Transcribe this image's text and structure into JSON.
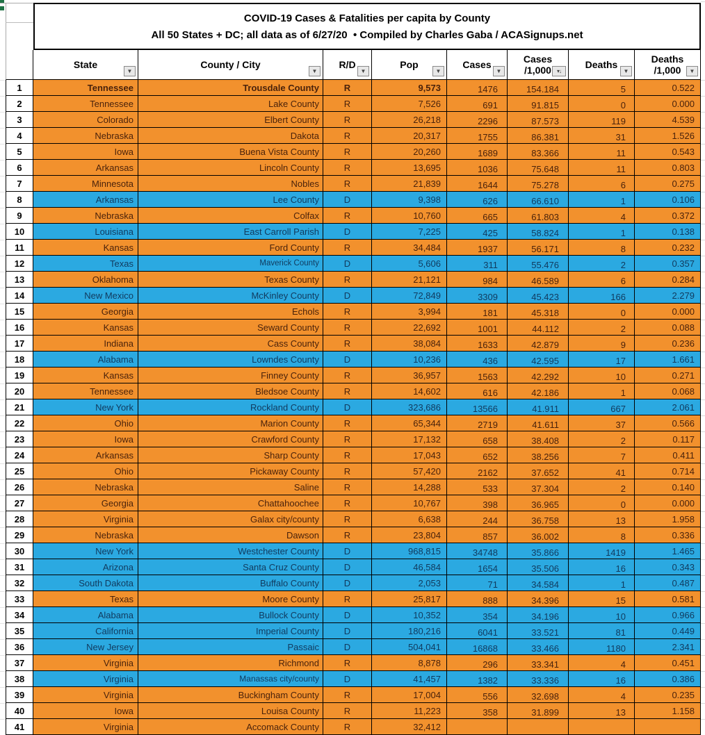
{
  "title": "COVID-19 Cases & Fatalities per capita by County",
  "subtitle": "All 50 States + DC; all data as of 6/27/20  • Compiled by Charles Gaba / ACASignups.net",
  "columns": {
    "state": "State",
    "county": "County / City",
    "rd": "R/D",
    "pop": "Pop",
    "cases": "Cases",
    "cases_per_1000_line1": "Cases",
    "cases_per_1000_line2": "/1,000",
    "deaths": "Deaths",
    "deaths_per_1000_line1": "Deaths",
    "deaths_per_1000_line2": "/1,000"
  },
  "filter_icon": "▼",
  "sort_filter_icon": "▾↓",
  "colors": {
    "republican_row": "#F2912D",
    "democrat_row": "#2BA9E1",
    "republican_text": "#4A220B",
    "democrat_text": "#113A5E"
  },
  "bold_row": 1,
  "rows": [
    [
      "1",
      "Tennessee",
      "Trousdale County",
      "R",
      "9,573",
      "1476",
      "154.184",
      "5",
      "0.522"
    ],
    [
      "2",
      "Tennessee",
      "Lake County",
      "R",
      "7,526",
      "691",
      "91.815",
      "0",
      "0.000"
    ],
    [
      "3",
      "Colorado",
      "Elbert County",
      "R",
      "26,218",
      "2296",
      "87.573",
      "119",
      "4.539"
    ],
    [
      "4",
      "Nebraska",
      "Dakota",
      "R",
      "20,317",
      "1755",
      "86.381",
      "31",
      "1.526"
    ],
    [
      "5",
      "Iowa",
      "Buena Vista County",
      "R",
      "20,260",
      "1689",
      "83.366",
      "11",
      "0.543"
    ],
    [
      "6",
      "Arkansas",
      "Lincoln County",
      "R",
      "13,695",
      "1036",
      "75.648",
      "11",
      "0.803"
    ],
    [
      "7",
      "Minnesota",
      "Nobles",
      "R",
      "21,839",
      "1644",
      "75.278",
      "6",
      "0.275"
    ],
    [
      "8",
      "Arkansas",
      "Lee County",
      "D",
      "9,398",
      "626",
      "66.610",
      "1",
      "0.106"
    ],
    [
      "9",
      "Nebraska",
      "Colfax",
      "R",
      "10,760",
      "665",
      "61.803",
      "4",
      "0.372"
    ],
    [
      "10",
      "Louisiana",
      "East Carroll Parish",
      "D",
      "7,225",
      "425",
      "58.824",
      "1",
      "0.138"
    ],
    [
      "11",
      "Kansas",
      "Ford County",
      "R",
      "34,484",
      "1937",
      "56.171",
      "8",
      "0.232"
    ],
    [
      "12",
      "Texas",
      "Maverick County",
      "D",
      "5,606",
      "311",
      "55.476",
      "2",
      "0.357"
    ],
    [
      "13",
      "Oklahoma",
      "Texas County",
      "R",
      "21,121",
      "984",
      "46.589",
      "6",
      "0.284"
    ],
    [
      "14",
      "New Mexico",
      "McKinley County",
      "D",
      "72,849",
      "3309",
      "45.423",
      "166",
      "2.279"
    ],
    [
      "15",
      "Georgia",
      "Echols",
      "R",
      "3,994",
      "181",
      "45.318",
      "0",
      "0.000"
    ],
    [
      "16",
      "Kansas",
      "Seward County",
      "R",
      "22,692",
      "1001",
      "44.112",
      "2",
      "0.088"
    ],
    [
      "17",
      "Indiana",
      "Cass County",
      "R",
      "38,084",
      "1633",
      "42.879",
      "9",
      "0.236"
    ],
    [
      "18",
      "Alabama",
      "Lowndes County",
      "D",
      "10,236",
      "436",
      "42.595",
      "17",
      "1.661"
    ],
    [
      "19",
      "Kansas",
      "Finney County",
      "R",
      "36,957",
      "1563",
      "42.292",
      "10",
      "0.271"
    ],
    [
      "20",
      "Tennessee",
      "Bledsoe County",
      "R",
      "14,602",
      "616",
      "42.186",
      "1",
      "0.068"
    ],
    [
      "21",
      "New York",
      "Rockland County",
      "D",
      "323,686",
      "13566",
      "41.911",
      "667",
      "2.061"
    ],
    [
      "22",
      "Ohio",
      "Marion County",
      "R",
      "65,344",
      "2719",
      "41.611",
      "37",
      "0.566"
    ],
    [
      "23",
      "Iowa",
      "Crawford County",
      "R",
      "17,132",
      "658",
      "38.408",
      "2",
      "0.117"
    ],
    [
      "24",
      "Arkansas",
      "Sharp County",
      "R",
      "17,043",
      "652",
      "38.256",
      "7",
      "0.411"
    ],
    [
      "25",
      "Ohio",
      "Pickaway County",
      "R",
      "57,420",
      "2162",
      "37.652",
      "41",
      "0.714"
    ],
    [
      "26",
      "Nebraska",
      "Saline",
      "R",
      "14,288",
      "533",
      "37.304",
      "2",
      "0.140"
    ],
    [
      "27",
      "Georgia",
      "Chattahoochee",
      "R",
      "10,767",
      "398",
      "36.965",
      "0",
      "0.000"
    ],
    [
      "28",
      "Virginia",
      "Galax city/county",
      "R",
      "6,638",
      "244",
      "36.758",
      "13",
      "1.958"
    ],
    [
      "29",
      "Nebraska",
      "Dawson",
      "R",
      "23,804",
      "857",
      "36.002",
      "8",
      "0.336"
    ],
    [
      "30",
      "New York",
      "Westchester County",
      "D",
      "968,815",
      "34748",
      "35.866",
      "1419",
      "1.465"
    ],
    [
      "31",
      "Arizona",
      "Santa Cruz County",
      "D",
      "46,584",
      "1654",
      "35.506",
      "16",
      "0.343"
    ],
    [
      "32",
      "South Dakota",
      "Buffalo County",
      "D",
      "2,053",
      "71",
      "34.584",
      "1",
      "0.487"
    ],
    [
      "33",
      "Texas",
      "Moore County",
      "R",
      "25,817",
      "888",
      "34.396",
      "15",
      "0.581"
    ],
    [
      "34",
      "Alabama",
      "Bullock County",
      "D",
      "10,352",
      "354",
      "34.196",
      "10",
      "0.966"
    ],
    [
      "35",
      "California",
      "Imperial County",
      "D",
      "180,216",
      "6041",
      "33.521",
      "81",
      "0.449"
    ],
    [
      "36",
      "New Jersey",
      "Passaic",
      "D",
      "504,041",
      "16868",
      "33.466",
      "1180",
      "2.341"
    ],
    [
      "37",
      "Virginia",
      "Richmond",
      "R",
      "8,878",
      "296",
      "33.341",
      "4",
      "0.451"
    ],
    [
      "38",
      "Virginia",
      "Manassas city/county",
      "D",
      "41,457",
      "1382",
      "33.336",
      "16",
      "0.386"
    ],
    [
      "39",
      "Virginia",
      "Buckingham County",
      "R",
      "17,004",
      "556",
      "32.698",
      "4",
      "0.235"
    ],
    [
      "40",
      "Iowa",
      "Louisa County",
      "R",
      "11,223",
      "358",
      "31.899",
      "13",
      "1.158"
    ]
  ],
  "partial_row": [
    "41",
    "Virginia",
    "Accomack County",
    "R",
    "32,412",
    "",
    "",
    "",
    ""
  ]
}
